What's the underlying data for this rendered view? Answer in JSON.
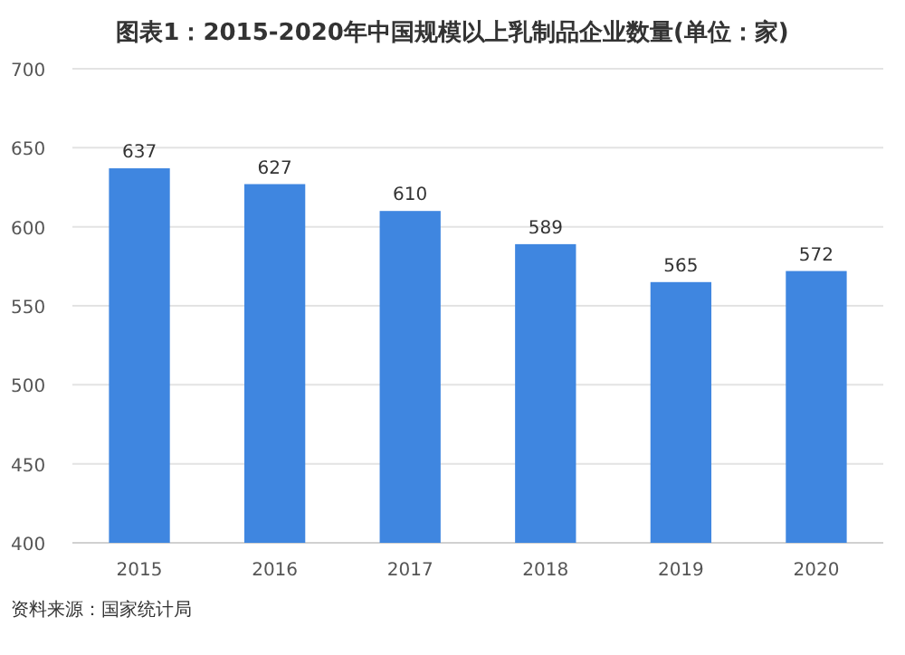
{
  "chart_data": {
    "type": "bar",
    "title": "图表1：2015-2020年中国规模以上乳制品企业数量(单位：家)",
    "categories": [
      "2015",
      "2016",
      "2017",
      "2018",
      "2019",
      "2020"
    ],
    "values": [
      637,
      627,
      610,
      589,
      565,
      572
    ],
    "color": "#3f86e0",
    "ylim": [
      400,
      700
    ],
    "yticks": [
      400,
      450,
      500,
      550,
      600,
      650,
      700
    ],
    "grid": "y",
    "data_labels": true,
    "annotations": [
      "资料来源：国家统计局"
    ]
  }
}
